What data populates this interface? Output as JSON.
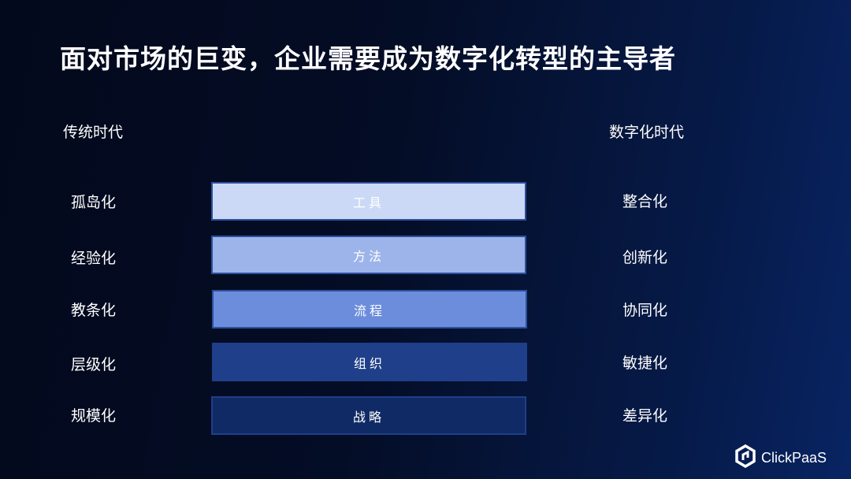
{
  "title": "面对市场的巨变，企业需要成为数字化转型的主导者",
  "left_header": "传统时代",
  "right_header": "数字化时代",
  "rows": [
    {
      "left": "孤岛化",
      "center": "工具",
      "right": "整合化",
      "color": "#cbd9f6"
    },
    {
      "left": "经验化",
      "center": "方法",
      "right": "创新化",
      "color": "#9cb4ea"
    },
    {
      "left": "教条化",
      "center": "流程",
      "right": "协同化",
      "color": "#6b8ddb"
    },
    {
      "left": "层级化",
      "center": "组织",
      "right": "敏捷化",
      "color": "#1f3f8a"
    },
    {
      "left": "规模化",
      "center": "战略",
      "right": "差异化",
      "color": "#102a66"
    }
  ],
  "logo": {
    "text": "ClickPaaS",
    "icon": "clickpaas-hexagon-icon"
  }
}
